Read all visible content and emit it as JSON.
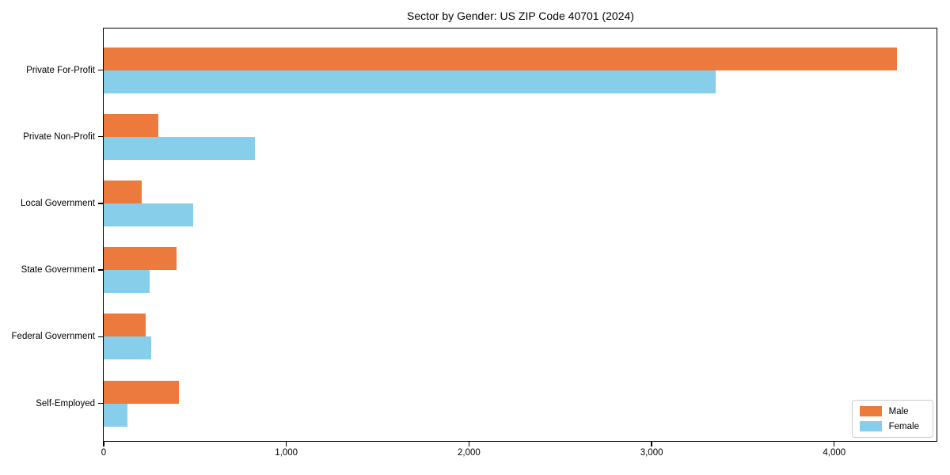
{
  "title": "Sector by Gender: US ZIP Code 40701 (2024)",
  "colors": {
    "male": "#EC7A3C",
    "female": "#87CEEB",
    "axis": "#000000",
    "legend_border": "#cccccc",
    "background": "#ffffff"
  },
  "legend": {
    "position": "lower right",
    "items": [
      {
        "label": "Male",
        "color": "#EC7A3C"
      },
      {
        "label": "Female",
        "color": "#87CEEB"
      }
    ]
  },
  "chart_data": {
    "type": "bar",
    "orientation": "horizontal",
    "title": "Sector by Gender: US ZIP Code 40701 (2024)",
    "xlabel": "",
    "ylabel": "",
    "categories": [
      "Private For-Profit",
      "Private Non-Profit",
      "Local Government",
      "State Government",
      "Federal Government",
      "Self-Employed"
    ],
    "series": [
      {
        "name": "Male",
        "color": "#EC7A3C",
        "values": [
          4345,
          300,
          210,
          400,
          230,
          410
        ]
      },
      {
        "name": "Female",
        "color": "#87CEEB",
        "values": [
          3350,
          830,
          490,
          250,
          260,
          130
        ]
      }
    ],
    "xlim": [
      0,
      4560
    ],
    "x_ticks": [
      0,
      1000,
      2000,
      3000,
      4000
    ],
    "x_tick_labels": [
      "0",
      "1,000",
      "2,000",
      "3,000",
      "4,000"
    ],
    "grid": false,
    "legend_position": "lower right"
  }
}
